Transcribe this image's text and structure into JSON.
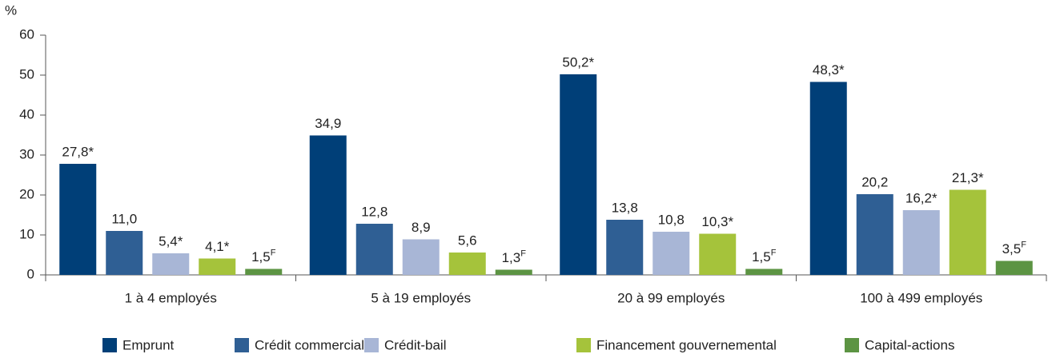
{
  "chart_data": {
    "type": "bar",
    "y_label": "%",
    "categories": [
      "1 à 4 employés",
      "5 à 19 employés",
      "20 à 99 employés",
      "100 à 499 employés"
    ],
    "series": [
      {
        "name": "Emprunt",
        "color": "#003f78",
        "values": [
          27.8,
          34.9,
          50.2,
          48.3
        ],
        "value_labels": [
          "27,8*",
          "34,9",
          "50,2*",
          "48,3*"
        ]
      },
      {
        "name": "Crédit commercial",
        "color": "#2f5f94",
        "values": [
          11.0,
          12.8,
          13.8,
          20.2
        ],
        "value_labels": [
          "11,0",
          "12,8",
          "13,8",
          "20,2"
        ]
      },
      {
        "name": "Crédit-bail",
        "color": "#a8b6d6",
        "values": [
          5.4,
          8.9,
          10.8,
          16.2
        ],
        "value_labels": [
          "5,4*",
          "8,9",
          "10,8",
          "16,2*"
        ]
      },
      {
        "name": "Financement gouvernemental",
        "color": "#a5c33b",
        "values": [
          4.1,
          5.6,
          10.3,
          21.3
        ],
        "value_labels": [
          "4,1*",
          "5,6",
          "10,3*",
          "21,3*"
        ]
      },
      {
        "name": "Capital-actions",
        "color": "#5c9443",
        "values": [
          1.5,
          1.3,
          1.5,
          3.5
        ],
        "value_labels": [
          "1,5F",
          "1,3F",
          "1,5F",
          "3,5F"
        ]
      }
    ],
    "ylim": [
      0,
      60
    ],
    "yticks": [
      0,
      10,
      20,
      30,
      40,
      50,
      60
    ],
    "grid": false,
    "legend": "bottom"
  }
}
